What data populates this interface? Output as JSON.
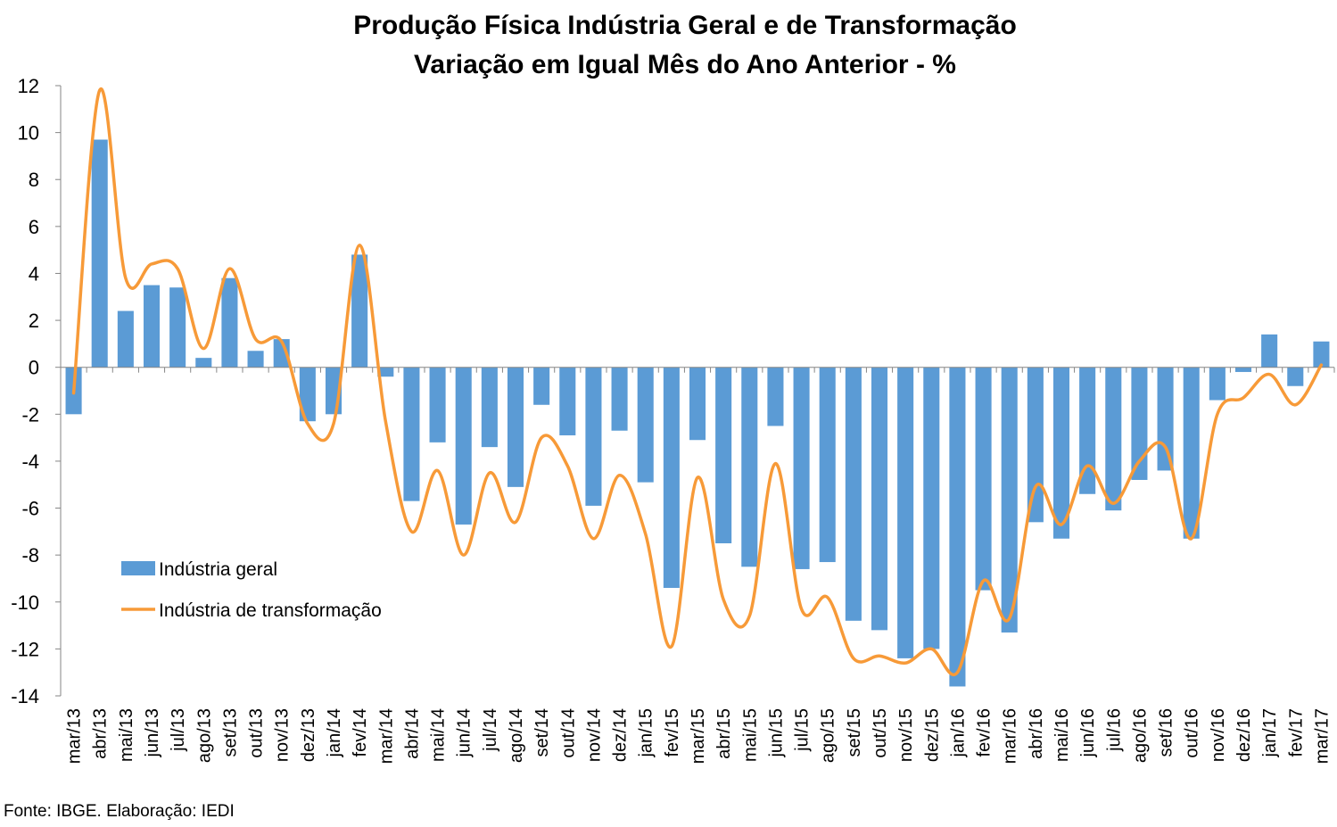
{
  "chart_data": {
    "type": "bar",
    "title": "Produção Física Indústria Geral e de Transformação",
    "subtitle": "Variação em Igual Mês do Ano Anterior - %",
    "xlabel": "",
    "ylabel": "",
    "ylim": [
      -14,
      12
    ],
    "yticks": [
      12,
      10,
      8,
      6,
      4,
      2,
      0,
      -2,
      -4,
      -6,
      -8,
      -10,
      -12,
      -14
    ],
    "grid": false,
    "legend_position": "left-middle",
    "categories": [
      "mar/13",
      "abr/13",
      "mai/13",
      "jun/13",
      "jul/13",
      "ago/13",
      "set/13",
      "out/13",
      "nov/13",
      "dez/13",
      "jan/14",
      "fev/14",
      "mar/14",
      "abr/14",
      "mai/14",
      "jun/14",
      "jul/14",
      "ago/14",
      "set/14",
      "out/14",
      "nov/14",
      "dez/14",
      "jan/15",
      "fev/15",
      "mar/15",
      "abr/15",
      "mai/15",
      "jun/15",
      "jul/15",
      "ago/15",
      "set/15",
      "out/15",
      "nov/15",
      "dez/15",
      "jan/16",
      "fev/16",
      "mar/16",
      "abr/16",
      "mai/16",
      "jun/16",
      "jul/16",
      "ago/16",
      "set/16",
      "out/16",
      "nov/16",
      "dez/16",
      "jan/17",
      "fev/17",
      "mar/17"
    ],
    "series": [
      {
        "name": "Indústria geral",
        "type": "bar",
        "color": "#5b9bd5",
        "values": [
          -2.0,
          9.7,
          2.4,
          3.5,
          3.4,
          0.4,
          3.8,
          0.7,
          1.2,
          -2.3,
          -2.0,
          4.8,
          -0.4,
          -5.7,
          -3.2,
          -6.7,
          -3.4,
          -5.1,
          -1.6,
          -2.9,
          -5.9,
          -2.7,
          -4.9,
          -9.4,
          -3.1,
          -7.5,
          -8.5,
          -2.5,
          -8.6,
          -8.3,
          -10.8,
          -11.2,
          -12.4,
          -12.0,
          -13.6,
          -9.5,
          -11.3,
          -6.6,
          -7.3,
          -5.4,
          -6.1,
          -4.8,
          -4.4,
          -7.3,
          -1.4,
          -0.2,
          1.4,
          -0.8,
          1.1
        ]
      },
      {
        "name": "Indústria de transformação",
        "type": "line",
        "color": "#f79a38",
        "values": [
          -1.1,
          11.8,
          3.8,
          4.4,
          4.2,
          0.8,
          4.2,
          1.2,
          1.1,
          -2.4,
          -2.4,
          5.2,
          -2.3,
          -7.0,
          -4.4,
          -8.0,
          -4.5,
          -6.6,
          -3.0,
          -4.2,
          -7.3,
          -4.6,
          -7.1,
          -11.9,
          -4.7,
          -9.9,
          -10.6,
          -4.1,
          -10.3,
          -9.8,
          -12.4,
          -12.3,
          -12.6,
          -12.0,
          -13.0,
          -9.1,
          -10.7,
          -5.1,
          -6.7,
          -4.2,
          -5.8,
          -4.0,
          -3.4,
          -7.3,
          -2.0,
          -1.3,
          -0.3,
          -1.6,
          0.1
        ]
      }
    ]
  },
  "footer": {
    "source": "Fonte: IBGE. Elaboração: IEDI"
  }
}
